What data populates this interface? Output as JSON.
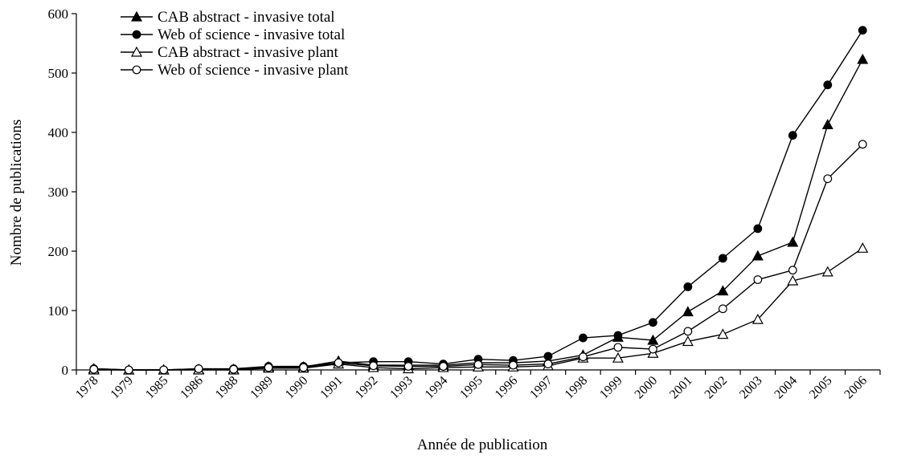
{
  "chart_data": {
    "type": "line",
    "xlabel": "Année de publication",
    "ylabel": "Nombre de publications",
    "categories": [
      "1978",
      "1979",
      "1985",
      "1986",
      "1988",
      "1989",
      "1990",
      "1991",
      "1992",
      "1993",
      "1994",
      "1995",
      "1996",
      "1997",
      "1998",
      "1999",
      "2000",
      "2001",
      "2002",
      "2003",
      "2004",
      "2005",
      "2006"
    ],
    "series": [
      {
        "name": "CAB abstract - invasive total",
        "color": "#000000",
        "marker": "triangle",
        "filled": true,
        "values": [
          2,
          0,
          0,
          1,
          1,
          5,
          5,
          15,
          8,
          8,
          8,
          12,
          12,
          15,
          25,
          55,
          50,
          98,
          133,
          192,
          215,
          413,
          523
        ]
      },
      {
        "name": "Web of science - invasive total",
        "color": "#000000",
        "marker": "circle",
        "filled": true,
        "values": [
          2,
          0,
          0,
          2,
          2,
          6,
          6,
          12,
          14,
          14,
          10,
          18,
          16,
          23,
          54,
          58,
          80,
          140,
          188,
          238,
          395,
          480,
          572
        ]
      },
      {
        "name": "CAB abstract - invasive plant",
        "color": "#000000",
        "marker": "triangle",
        "filled": false,
        "values": [
          0,
          0,
          0,
          0,
          0,
          3,
          3,
          10,
          4,
          2,
          4,
          5,
          5,
          7,
          20,
          20,
          28,
          48,
          60,
          85,
          150,
          165,
          205
        ]
      },
      {
        "name": "Web of science - invasive plant",
        "color": "#000000",
        "marker": "circle",
        "filled": false,
        "values": [
          1,
          0,
          0,
          2,
          1,
          4,
          4,
          12,
          7,
          6,
          6,
          9,
          8,
          10,
          22,
          38,
          35,
          65,
          103,
          152,
          168,
          322,
          380
        ]
      }
    ],
    "ylim": [
      0,
      600
    ],
    "yticks": [
      0,
      100,
      200,
      300,
      400,
      500,
      600
    ],
    "legend": "upper left"
  }
}
